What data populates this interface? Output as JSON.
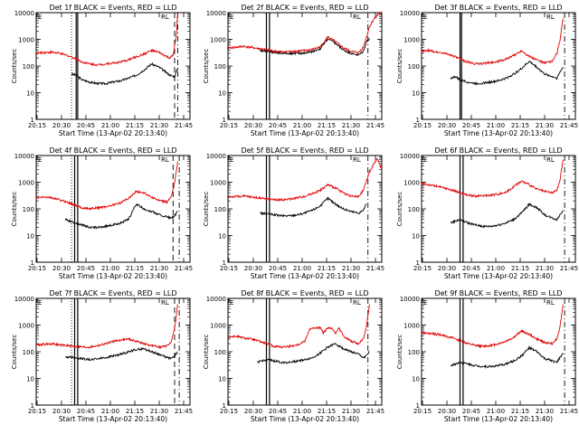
{
  "common": {
    "ylabel": "Counts/sec",
    "xlabel": "Start Time (13-Apr-02 20:13:40)",
    "x_ticks": [
      "20:15",
      "20:30",
      "20:45",
      "21:00",
      "21:15",
      "21:30",
      "21:45"
    ],
    "y_ticks": [
      "1",
      "10",
      "100",
      "1000",
      "10000"
    ],
    "corner_label_left": "E",
    "corner_label_right": "RL",
    "colors": {
      "events": "#000000",
      "lld": "#e00000"
    }
  },
  "chart_data": [
    {
      "type": "line",
      "title": "Det 1f BLACK = Events, RED = LLD",
      "xlabel": "Start Time (13-Apr-02 20:13:40)",
      "ylabel": "Counts/sec",
      "xlim_min": [
        0,
        100
      ],
      "ylim": [
        1,
        10000
      ],
      "yscale": "log",
      "series": [
        {
          "name": "Events",
          "color": "#000000",
          "x": [
            23,
            26,
            30,
            35,
            40,
            45,
            50,
            55,
            60,
            65,
            70,
            75,
            80,
            85,
            87,
            90,
            91,
            92
          ],
          "y": [
            50,
            45,
            30,
            25,
            22,
            22,
            25,
            28,
            35,
            45,
            70,
            120,
            90,
            55,
            45,
            40,
            60,
            80
          ]
        },
        {
          "name": "LLD",
          "color": "#e00000",
          "x": [
            0,
            5,
            10,
            15,
            20,
            25,
            30,
            35,
            40,
            45,
            50,
            55,
            60,
            65,
            70,
            75,
            80,
            85,
            87,
            89,
            91,
            92
          ],
          "y": [
            300,
            320,
            330,
            300,
            250,
            200,
            140,
            120,
            110,
            120,
            130,
            140,
            170,
            220,
            280,
            380,
            320,
            220,
            200,
            250,
            1200,
            9500
          ]
        }
      ],
      "vlines": [
        {
          "x": 23,
          "style": "dotted"
        },
        {
          "x": 26,
          "style": "solid"
        },
        {
          "x": 27,
          "style": "solid"
        },
        {
          "x": 90,
          "style": "dashed"
        },
        {
          "x": 92,
          "style": "dashdot"
        }
      ]
    },
    {
      "type": "line",
      "title": "Det 2f BLACK = Events, RED = LLD",
      "xlabel": "Start Time (13-Apr-02 20:13:40)",
      "ylabel": "Counts/sec",
      "xlim_min": [
        0,
        100
      ],
      "ylim": [
        1,
        10000
      ],
      "yscale": "log",
      "series": [
        {
          "name": "Events",
          "color": "#000000",
          "x": [
            21,
            25,
            30,
            35,
            40,
            45,
            50,
            55,
            60,
            65,
            70,
            75,
            80,
            85,
            88,
            90,
            92
          ],
          "y": [
            380,
            370,
            330,
            300,
            300,
            300,
            310,
            350,
            450,
            1050,
            700,
            400,
            300,
            260,
            350,
            800,
            1100
          ]
        },
        {
          "name": "LLD",
          "color": "#e00000",
          "x": [
            0,
            5,
            10,
            15,
            20,
            25,
            30,
            35,
            40,
            45,
            50,
            55,
            60,
            65,
            70,
            75,
            80,
            85,
            88,
            90,
            92,
            95,
            98,
            100
          ],
          "y": [
            480,
            500,
            550,
            500,
            450,
            400,
            360,
            340,
            350,
            360,
            380,
            420,
            520,
            1250,
            800,
            480,
            350,
            320,
            500,
            1200,
            3000,
            6000,
            9000,
            10000
          ]
        }
      ],
      "vlines": [
        {
          "x": 25,
          "style": "solid"
        },
        {
          "x": 27,
          "style": "solid"
        },
        {
          "x": 91,
          "style": "dashdot"
        }
      ]
    },
    {
      "type": "line",
      "title": "Det 3f BLACK = Events, RED = LLD",
      "xlabel": "Start Time (13-Apr-02 20:13:40)",
      "ylabel": "Counts/sec",
      "xlim_min": [
        0,
        100
      ],
      "ylim": [
        1,
        10000
      ],
      "yscale": "log",
      "series": [
        {
          "name": "Events",
          "color": "#000000",
          "x": [
            19,
            22,
            25,
            30,
            35,
            40,
            45,
            50,
            55,
            60,
            65,
            70,
            75,
            80,
            85,
            88,
            90,
            92
          ],
          "y": [
            35,
            40,
            30,
            25,
            22,
            23,
            25,
            28,
            35,
            50,
            80,
            150,
            90,
            50,
            40,
            35,
            60,
            90
          ]
        },
        {
          "name": "LLD",
          "color": "#e00000",
          "x": [
            0,
            5,
            10,
            15,
            20,
            25,
            30,
            35,
            40,
            45,
            50,
            55,
            60,
            65,
            70,
            75,
            80,
            85,
            88,
            90,
            92
          ],
          "y": [
            350,
            380,
            330,
            300,
            250,
            180,
            140,
            120,
            125,
            135,
            150,
            180,
            250,
            380,
            230,
            170,
            130,
            150,
            300,
            900,
            6000
          ]
        }
      ],
      "vlines": [
        {
          "x": 25,
          "style": "solid"
        },
        {
          "x": 26,
          "style": "solid"
        },
        {
          "x": 93,
          "style": "dashdot"
        }
      ]
    },
    {
      "type": "line",
      "title": "Det 4f BLACK = Events, RED = LLD",
      "xlabel": "Start Time (13-Apr-02 20:13:40)",
      "ylabel": "Counts/sec",
      "xlim_min": [
        0,
        100
      ],
      "ylim": [
        1,
        10000
      ],
      "yscale": "log",
      "series": [
        {
          "name": "Events",
          "color": "#000000",
          "x": [
            19,
            22,
            25,
            30,
            35,
            40,
            45,
            50,
            55,
            60,
            65,
            70,
            75,
            80,
            85,
            88,
            90,
            92
          ],
          "y": [
            40,
            35,
            30,
            25,
            20,
            20,
            22,
            25,
            30,
            40,
            150,
            100,
            80,
            60,
            50,
            45,
            55,
            80
          ]
        },
        {
          "name": "LLD",
          "color": "#e00000",
          "x": [
            0,
            5,
            10,
            15,
            20,
            25,
            30,
            35,
            40,
            45,
            50,
            55,
            60,
            65,
            70,
            75,
            80,
            85,
            88,
            90,
            92
          ],
          "y": [
            250,
            280,
            260,
            220,
            180,
            140,
            110,
            100,
            110,
            120,
            140,
            170,
            250,
            450,
            400,
            280,
            200,
            180,
            300,
            900,
            6000
          ]
        }
      ],
      "vlines": [
        {
          "x": 23,
          "style": "dotted"
        },
        {
          "x": 25,
          "style": "solid"
        },
        {
          "x": 27,
          "style": "solid"
        },
        {
          "x": 89,
          "style": "dashed"
        },
        {
          "x": 93,
          "style": "dashdot"
        }
      ]
    },
    {
      "type": "line",
      "title": "Det 5f BLACK = Events, RED = LLD",
      "xlabel": "Start Time (13-Apr-02 20:13:40)",
      "ylabel": "Counts/sec",
      "xlim_min": [
        0,
        100
      ],
      "ylim": [
        1,
        10000
      ],
      "yscale": "log",
      "series": [
        {
          "name": "Events",
          "color": "#000000",
          "x": [
            21,
            25,
            30,
            35,
            40,
            45,
            50,
            55,
            60,
            65,
            70,
            75,
            80,
            85,
            88,
            90
          ],
          "y": [
            70,
            65,
            60,
            55,
            55,
            60,
            70,
            90,
            130,
            250,
            150,
            100,
            80,
            70,
            90,
            150
          ]
        },
        {
          "name": "LLD",
          "color": "#e00000",
          "x": [
            0,
            5,
            10,
            15,
            20,
            25,
            30,
            35,
            40,
            45,
            50,
            55,
            60,
            65,
            70,
            75,
            80,
            85,
            88,
            90,
            92,
            95,
            97,
            100
          ],
          "y": [
            280,
            290,
            300,
            280,
            260,
            240,
            220,
            220,
            230,
            260,
            300,
            380,
            500,
            800,
            600,
            400,
            300,
            280,
            500,
            1100,
            2500,
            5000,
            7500,
            3000
          ]
        }
      ],
      "vlines": [
        {
          "x": 25,
          "style": "solid"
        },
        {
          "x": 27,
          "style": "solid"
        },
        {
          "x": 91,
          "style": "dashdot"
        }
      ]
    },
    {
      "type": "line",
      "title": "Det 6f BLACK = Events, RED = LLD",
      "xlabel": "Start Time (13-Apr-02 20:13:40)",
      "ylabel": "Counts/sec",
      "xlim_min": [
        0,
        100
      ],
      "ylim": [
        1,
        10000
      ],
      "yscale": "log",
      "series": [
        {
          "name": "Events",
          "color": "#000000",
          "x": [
            19,
            22,
            25,
            30,
            35,
            40,
            45,
            50,
            55,
            60,
            65,
            70,
            75,
            80,
            85,
            88,
            90,
            92
          ],
          "y": [
            30,
            35,
            40,
            30,
            25,
            22,
            22,
            25,
            30,
            40,
            70,
            150,
            110,
            60,
            45,
            40,
            60,
            90
          ]
        },
        {
          "name": "LLD",
          "color": "#e00000",
          "x": [
            0,
            5,
            10,
            15,
            20,
            25,
            30,
            35,
            40,
            45,
            50,
            55,
            60,
            65,
            70,
            75,
            80,
            85,
            88,
            90,
            92
          ],
          "y": [
            900,
            800,
            700,
            600,
            500,
            400,
            330,
            300,
            310,
            330,
            360,
            420,
            700,
            1100,
            800,
            550,
            450,
            400,
            500,
            1200,
            7000
          ]
        }
      ],
      "vlines": [
        {
          "x": 25,
          "style": "solid"
        },
        {
          "x": 27,
          "style": "solid"
        },
        {
          "x": 93,
          "style": "dashdot"
        }
      ]
    },
    {
      "type": "line",
      "title": "Det 7f BLACK = Events, RED = LLD",
      "xlabel": "Start Time (13-Apr-02 20:13:40)",
      "ylabel": "Counts/sec",
      "xlim_min": [
        0,
        100
      ],
      "ylim": [
        1,
        10000
      ],
      "yscale": "log",
      "series": [
        {
          "name": "Events",
          "color": "#000000",
          "x": [
            19,
            22,
            25,
            30,
            35,
            40,
            45,
            50,
            55,
            60,
            65,
            70,
            75,
            80,
            85,
            88,
            90,
            92
          ],
          "y": [
            60,
            65,
            60,
            55,
            50,
            55,
            60,
            70,
            80,
            100,
            120,
            130,
            100,
            80,
            60,
            55,
            70,
            100
          ]
        },
        {
          "name": "LLD",
          "color": "#e00000",
          "x": [
            0,
            5,
            10,
            15,
            20,
            25,
            30,
            35,
            40,
            45,
            50,
            55,
            60,
            65,
            70,
            75,
            80,
            85,
            88,
            90,
            92
          ],
          "y": [
            180,
            190,
            200,
            180,
            170,
            160,
            150,
            150,
            170,
            200,
            240,
            280,
            300,
            250,
            200,
            170,
            150,
            160,
            250,
            700,
            6000
          ]
        }
      ],
      "vlines": [
        {
          "x": 23,
          "style": "dotted"
        },
        {
          "x": 25,
          "style": "solid"
        },
        {
          "x": 27,
          "style": "solid"
        },
        {
          "x": 90,
          "style": "dashed"
        },
        {
          "x": 93,
          "style": "dashdot"
        }
      ]
    },
    {
      "type": "line",
      "title": "Det 8f BLACK = Events, RED = LLD",
      "xlabel": "Start Time (13-Apr-02 20:13:40)",
      "ylabel": "Counts/sec",
      "xlim_min": [
        0,
        100
      ],
      "ylim": [
        1,
        10000
      ],
      "yscale": "log",
      "series": [
        {
          "name": "Events",
          "color": "#000000",
          "x": [
            19,
            22,
            25,
            30,
            35,
            40,
            45,
            50,
            55,
            60,
            65,
            70,
            75,
            80,
            85,
            88,
            90,
            92
          ],
          "y": [
            40,
            45,
            50,
            45,
            40,
            40,
            45,
            50,
            60,
            90,
            150,
            200,
            130,
            100,
            80,
            60,
            70,
            100
          ]
        },
        {
          "name": "LLD",
          "color": "#e00000",
          "x": [
            0,
            5,
            10,
            15,
            20,
            25,
            30,
            35,
            40,
            45,
            50,
            53,
            55,
            60,
            62,
            65,
            68,
            70,
            72,
            75,
            80,
            85,
            88,
            90,
            92
          ],
          "y": [
            350,
            380,
            330,
            300,
            250,
            200,
            160,
            150,
            160,
            180,
            250,
            700,
            750,
            800,
            500,
            800,
            700,
            500,
            800,
            400,
            250,
            200,
            300,
            900,
            6000
          ]
        }
      ],
      "vlines": [
        {
          "x": 25,
          "style": "solid"
        },
        {
          "x": 27,
          "style": "solid"
        },
        {
          "x": 91,
          "style": "dashdot"
        }
      ]
    },
    {
      "type": "line",
      "title": "Det 9f BLACK = Events, RED = LLD",
      "xlabel": "Start Time (13-Apr-02 20:13:40)",
      "ylabel": "Counts/sec",
      "xlim_min": [
        0,
        100
      ],
      "ylim": [
        1,
        10000
      ],
      "yscale": "log",
      "series": [
        {
          "name": "Events",
          "color": "#000000",
          "x": [
            19,
            22,
            25,
            30,
            35,
            40,
            45,
            50,
            55,
            60,
            65,
            70,
            75,
            80,
            85,
            88,
            90,
            92
          ],
          "y": [
            30,
            35,
            40,
            35,
            30,
            28,
            28,
            30,
            35,
            45,
            70,
            140,
            100,
            55,
            45,
            40,
            60,
            90
          ]
        },
        {
          "name": "LLD",
          "color": "#e00000",
          "x": [
            0,
            5,
            10,
            15,
            20,
            25,
            30,
            35,
            40,
            45,
            50,
            55,
            60,
            65,
            70,
            75,
            80,
            85,
            88,
            90,
            92
          ],
          "y": [
            500,
            480,
            450,
            400,
            330,
            260,
            200,
            170,
            160,
            170,
            200,
            250,
            350,
            600,
            450,
            300,
            220,
            200,
            300,
            900,
            6000
          ]
        }
      ],
      "vlines": [
        {
          "x": 25,
          "style": "solid"
        },
        {
          "x": 27,
          "style": "solid"
        },
        {
          "x": 93,
          "style": "dashdot"
        }
      ]
    }
  ]
}
